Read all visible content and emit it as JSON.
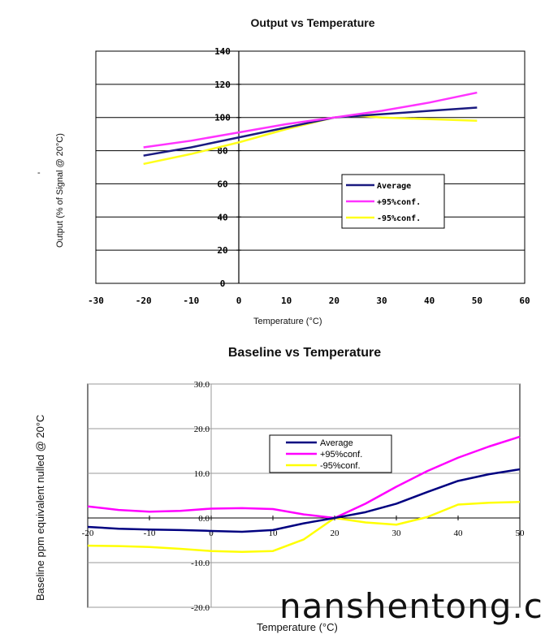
{
  "chart_data": [
    {
      "type": "line",
      "title": "Output vs Temperature",
      "xlabel": "Temperature (°C)",
      "ylabel": "Output (% of Signal @ 20°C)",
      "y_marker": "-",
      "xlim": [
        -30,
        60
      ],
      "ylim": [
        0,
        140
      ],
      "x_ticks": [
        -30,
        -20,
        -10,
        0,
        10,
        20,
        30,
        40,
        50,
        60
      ],
      "y_ticks": [
        0,
        20,
        40,
        60,
        80,
        100,
        120,
        140
      ],
      "grid": "horizontal",
      "legend_position": "lower-right",
      "series": [
        {
          "name": "Average",
          "color": "#1a1a80",
          "x": [
            -20,
            -10,
            0,
            10,
            20,
            25,
            30,
            35,
            40,
            45,
            50
          ],
          "y": [
            77,
            82,
            88,
            94,
            100,
            101,
            102,
            103,
            104,
            105,
            106
          ]
        },
        {
          "name": "+95%conf.",
          "color": "#ff33ff",
          "x": [
            -20,
            -10,
            0,
            10,
            20,
            30,
            40,
            50
          ],
          "y": [
            82,
            86,
            91,
            96,
            100,
            104,
            109,
            115
          ]
        },
        {
          "name": "-95%conf.",
          "color": "#ffff1a",
          "x": [
            -20,
            -10,
            0,
            10,
            20,
            25,
            30,
            40,
            50
          ],
          "y": [
            72,
            78,
            85,
            93,
            100,
            101,
            100,
            99,
            98
          ]
        }
      ]
    },
    {
      "type": "line",
      "title": "Baseline vs Temperature",
      "xlabel": "Temperature (°C)",
      "ylabel": "Baseline ppm equivalent nulled @ 20°C",
      "xlim": [
        -20,
        50
      ],
      "ylim": [
        -20,
        30
      ],
      "x_ticks": [
        -20,
        -10,
        0,
        10,
        20,
        30,
        40,
        50
      ],
      "x_tick_labels": [
        "-20",
        "-10",
        "0",
        "10",
        "20",
        "30",
        "40",
        "50"
      ],
      "y_ticks": [
        -20,
        -10,
        0,
        10,
        20,
        30
      ],
      "y_tick_labels": [
        "-20.0",
        "-10.0",
        "0.0",
        "10.0",
        "20.0",
        "30.0"
      ],
      "grid": "horizontal",
      "legend_position": "center-right",
      "series": [
        {
          "name": "Average",
          "color": "#000080",
          "x": [
            -20,
            -15,
            -10,
            -5,
            0,
            5,
            10,
            15,
            20,
            25,
            30,
            35,
            40,
            45,
            50
          ],
          "y": [
            -2,
            -2.4,
            -2.6,
            -2.7,
            -2.9,
            -3.1,
            -2.7,
            -1.2,
            0,
            1.3,
            3.2,
            5.8,
            8.3,
            9.8,
            10.9
          ]
        },
        {
          "name": "+95%conf.",
          "color": "#ff00ff",
          "x": [
            -20,
            -15,
            -10,
            -5,
            0,
            5,
            10,
            15,
            20,
            25,
            30,
            35,
            40,
            45,
            50
          ],
          "y": [
            2.6,
            1.8,
            1.4,
            1.6,
            2.1,
            2.2,
            2.0,
            0.8,
            0,
            3.2,
            7.0,
            10.5,
            13.5,
            16.0,
            18.2
          ]
        },
        {
          "name": "-95%conf.",
          "color": "#ffff00",
          "x": [
            -20,
            -15,
            -10,
            -5,
            0,
            5,
            10,
            15,
            20,
            25,
            30,
            35,
            40,
            45,
            50
          ],
          "y": [
            -6.2,
            -6.3,
            -6.5,
            -6.9,
            -7.4,
            -7.6,
            -7.4,
            -4.8,
            0,
            -1.0,
            -1.5,
            0.2,
            3.0,
            3.4,
            3.6
          ]
        }
      ]
    }
  ],
  "watermark": "nanshentong.c"
}
